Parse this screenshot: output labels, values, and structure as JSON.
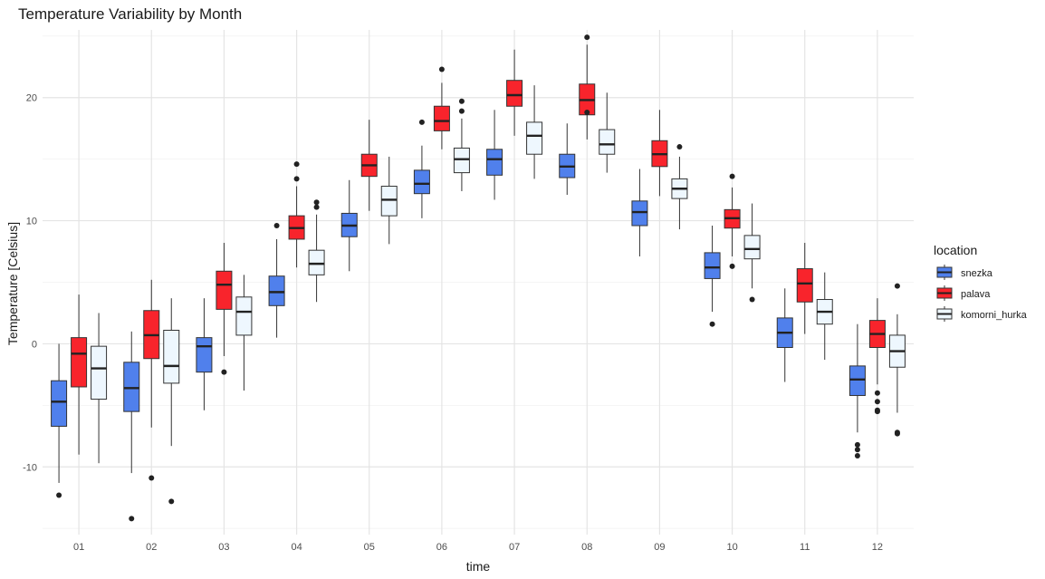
{
  "chart_data": {
    "type": "boxplot",
    "title": "Temperature Variability by Month",
    "xlabel": "time",
    "ylabel": "Temperature [Celsius]",
    "ylim": [
      -15.5,
      25.5
    ],
    "yticks": [
      -10,
      0,
      10,
      20
    ],
    "grid": true,
    "legend_title": "location",
    "legend_position": "right",
    "categories": [
      "01",
      "02",
      "03",
      "04",
      "05",
      "06",
      "07",
      "08",
      "09",
      "10",
      "11",
      "12"
    ],
    "series": [
      {
        "name": "snezka",
        "color": "#5080ec",
        "boxes": [
          {
            "lower": -11.3,
            "q1": -6.7,
            "median": -4.7,
            "q3": -3.0,
            "upper": 0.0,
            "outliers": [
              -12.3
            ]
          },
          {
            "lower": -10.5,
            "q1": -5.5,
            "median": -3.6,
            "q3": -1.5,
            "upper": 1.0,
            "outliers": [
              -14.2
            ]
          },
          {
            "lower": -5.4,
            "q1": -2.3,
            "median": -0.2,
            "q3": 0.5,
            "upper": 3.7,
            "outliers": []
          },
          {
            "lower": 0.5,
            "q1": 3.1,
            "median": 4.2,
            "q3": 5.5,
            "upper": 8.5,
            "outliers": [
              9.6
            ]
          },
          {
            "lower": 5.9,
            "q1": 8.7,
            "median": 9.6,
            "q3": 10.6,
            "upper": 13.3,
            "outliers": []
          },
          {
            "lower": 10.2,
            "q1": 12.2,
            "median": 13.0,
            "q3": 14.1,
            "upper": 16.1,
            "outliers": [
              18.0
            ]
          },
          {
            "lower": 11.7,
            "q1": 13.7,
            "median": 15.0,
            "q3": 15.8,
            "upper": 19.0,
            "outliers": []
          },
          {
            "lower": 12.1,
            "q1": 13.5,
            "median": 14.4,
            "q3": 15.4,
            "upper": 17.9,
            "outliers": []
          },
          {
            "lower": 7.1,
            "q1": 9.6,
            "median": 10.7,
            "q3": 11.6,
            "upper": 14.2,
            "outliers": []
          },
          {
            "lower": 2.6,
            "q1": 5.3,
            "median": 6.2,
            "q3": 7.4,
            "upper": 9.6,
            "outliers": [
              1.6
            ]
          },
          {
            "lower": -3.1,
            "q1": -0.3,
            "median": 0.9,
            "q3": 2.1,
            "upper": 4.5,
            "outliers": []
          },
          {
            "lower": -7.2,
            "q1": -4.2,
            "median": -2.9,
            "q3": -1.8,
            "upper": 1.6,
            "outliers": [
              -8.2,
              -8.6,
              -9.1
            ]
          }
        ]
      },
      {
        "name": "palava",
        "color": "#f8242c",
        "boxes": [
          {
            "lower": -9.0,
            "q1": -3.5,
            "median": -0.8,
            "q3": 0.5,
            "upper": 4.0,
            "outliers": []
          },
          {
            "lower": -6.8,
            "q1": -1.2,
            "median": 0.7,
            "q3": 2.7,
            "upper": 5.2,
            "outliers": [
              -10.9
            ]
          },
          {
            "lower": -1.0,
            "q1": 2.8,
            "median": 4.8,
            "q3": 5.9,
            "upper": 8.2,
            "outliers": [
              -2.3
            ]
          },
          {
            "lower": 6.2,
            "q1": 8.5,
            "median": 9.4,
            "q3": 10.4,
            "upper": 12.8,
            "outliers": [
              13.4,
              14.6
            ]
          },
          {
            "lower": 10.8,
            "q1": 13.6,
            "median": 14.5,
            "q3": 15.4,
            "upper": 18.2,
            "outliers": []
          },
          {
            "lower": 15.8,
            "q1": 17.3,
            "median": 18.1,
            "q3": 19.3,
            "upper": 21.2,
            "outliers": [
              22.3
            ]
          },
          {
            "lower": 16.9,
            "q1": 19.3,
            "median": 20.2,
            "q3": 21.4,
            "upper": 23.9,
            "outliers": []
          },
          {
            "lower": 16.6,
            "q1": 18.6,
            "median": 19.8,
            "q3": 21.1,
            "upper": 24.3,
            "outliers": [
              18.8,
              24.9
            ]
          },
          {
            "lower": 12.0,
            "q1": 14.4,
            "median": 15.4,
            "q3": 16.5,
            "upper": 19.0,
            "outliers": []
          },
          {
            "lower": 7.1,
            "q1": 9.4,
            "median": 10.2,
            "q3": 10.9,
            "upper": 12.7,
            "outliers": [
              6.3,
              13.6
            ]
          },
          {
            "lower": 0.8,
            "q1": 3.4,
            "median": 4.9,
            "q3": 6.1,
            "upper": 8.2,
            "outliers": []
          },
          {
            "lower": -3.3,
            "q1": -0.3,
            "median": 0.8,
            "q3": 1.9,
            "upper": 3.7,
            "outliers": [
              -4.0,
              -4.7,
              -5.4,
              -5.5
            ]
          }
        ]
      },
      {
        "name": "komorni_hurka",
        "color": "#eef7fe",
        "boxes": [
          {
            "lower": -9.7,
            "q1": -4.5,
            "median": -2.0,
            "q3": -0.2,
            "upper": 2.5,
            "outliers": []
          },
          {
            "lower": -8.3,
            "q1": -3.2,
            "median": -1.8,
            "q3": 1.1,
            "upper": 3.7,
            "outliers": [
              -12.8
            ]
          },
          {
            "lower": -3.8,
            "q1": 0.7,
            "median": 2.6,
            "q3": 3.8,
            "upper": 5.6,
            "outliers": []
          },
          {
            "lower": 3.4,
            "q1": 5.6,
            "median": 6.5,
            "q3": 7.6,
            "upper": 10.5,
            "outliers": [
              11.1,
              11.5
            ]
          },
          {
            "lower": 8.1,
            "q1": 10.4,
            "median": 11.7,
            "q3": 12.8,
            "upper": 15.2,
            "outliers": []
          },
          {
            "lower": 12.4,
            "q1": 13.9,
            "median": 15.0,
            "q3": 15.9,
            "upper": 18.3,
            "outliers": [
              18.9,
              19.7
            ]
          },
          {
            "lower": 13.4,
            "q1": 15.4,
            "median": 16.9,
            "q3": 18.0,
            "upper": 21.0,
            "outliers": []
          },
          {
            "lower": 13.9,
            "q1": 15.4,
            "median": 16.2,
            "q3": 17.4,
            "upper": 20.4,
            "outliers": []
          },
          {
            "lower": 9.3,
            "q1": 11.8,
            "median": 12.6,
            "q3": 13.4,
            "upper": 15.2,
            "outliers": [
              16.0
            ]
          },
          {
            "lower": 4.5,
            "q1": 6.9,
            "median": 7.7,
            "q3": 8.8,
            "upper": 11.4,
            "outliers": [
              3.6
            ]
          },
          {
            "lower": -1.3,
            "q1": 1.6,
            "median": 2.6,
            "q3": 3.6,
            "upper": 5.8,
            "outliers": []
          },
          {
            "lower": -5.6,
            "q1": -1.9,
            "median": -0.6,
            "q3": 0.7,
            "upper": 2.4,
            "outliers": [
              4.7,
              -7.2,
              -7.3
            ]
          }
        ]
      }
    ]
  }
}
